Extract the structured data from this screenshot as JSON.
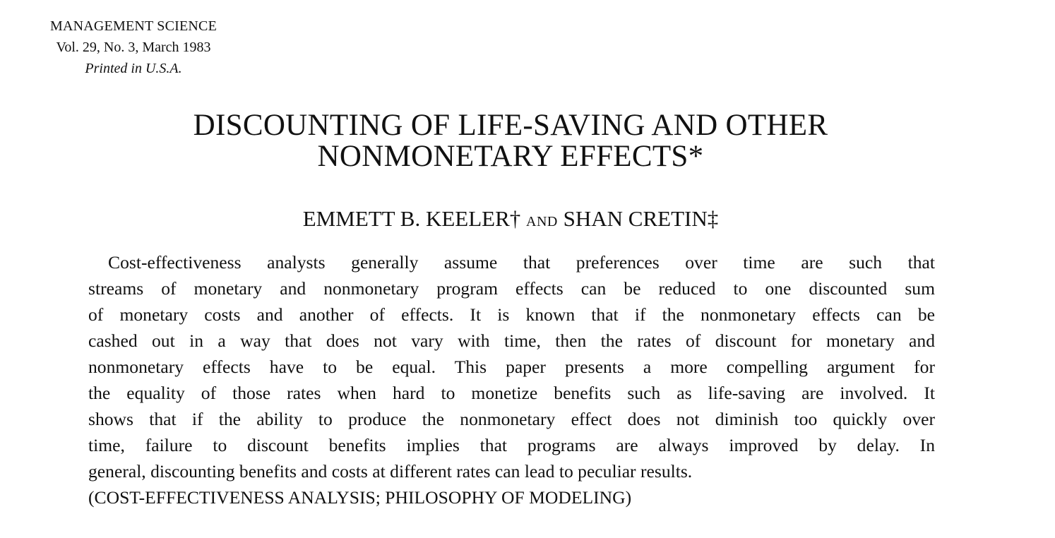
{
  "masthead": {
    "journal": "MANAGEMENT SCIENCE",
    "volume": "Vol. 29, No. 3, March 1983",
    "printed": "Printed in U.S.A."
  },
  "title": {
    "line1": "DISCOUNTING OF LIFE-SAVING AND OTHER",
    "line2": "NONMONETARY EFFECTS*"
  },
  "authors": {
    "author1": "EMMETT B. KEELER†",
    "conjunction": "AND",
    "author2": "SHAN CRETIN‡"
  },
  "abstract": {
    "lines": [
      "Cost-effectiveness analysts generally assume that preferences over time are such that",
      "streams of monetary and nonmonetary program effects can be reduced to one discounted sum",
      "of monetary costs and another of effects. It is known that if the nonmonetary effects can be",
      "cashed out in a way that does not vary with time, then the rates of discount for monetary and",
      "nonmonetary effects have to be equal. This paper presents a more compelling argument for",
      "the equality of those rates when hard to monetize benefits such as life-saving are involved. It",
      "shows that if the ability to produce the nonmonetary effect does not diminish too quickly over",
      "time, failure to discount benefits implies that programs are always improved by delay. In",
      "general, discounting benefits and costs at different rates can lead to peculiar results."
    ],
    "keywords": "(COST-EFFECTIVENESS ANALYSIS; PHILOSOPHY OF MODELING)"
  }
}
